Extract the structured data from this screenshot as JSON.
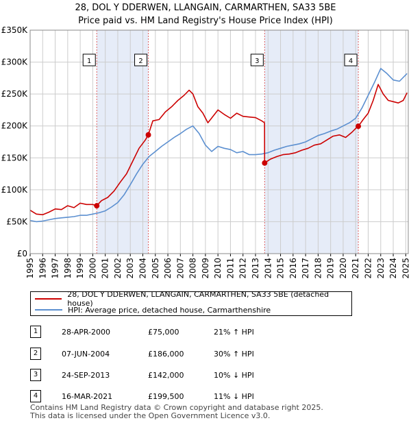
{
  "title_line1": "28, DOL Y DDERWEN, LLANGAIN, CARMARTHEN, SA33 5BE",
  "title_line2": "Price paid vs. HM Land Registry's House Price Index (HPI)",
  "chart_data": {
    "type": "line",
    "ylim": [
      0,
      350000
    ],
    "xlim": [
      1995.0,
      2025.2
    ],
    "y_ticks": [
      {
        "value": 0,
        "label": "£0"
      },
      {
        "value": 50000,
        "label": "£50K"
      },
      {
        "value": 100000,
        "label": "£100K"
      },
      {
        "value": 150000,
        "label": "£150K"
      },
      {
        "value": 200000,
        "label": "£200K"
      },
      {
        "value": 250000,
        "label": "£250K"
      },
      {
        "value": 300000,
        "label": "£300K"
      },
      {
        "value": 350000,
        "label": "£350K"
      }
    ],
    "x_ticks": [
      "1995",
      "1996",
      "1997",
      "1998",
      "1999",
      "2000",
      "2001",
      "2002",
      "2003",
      "2004",
      "2005",
      "2006",
      "2007",
      "2008",
      "2009",
      "2010",
      "2011",
      "2012",
      "2013",
      "2014",
      "2015",
      "2016",
      "2017",
      "2018",
      "2019",
      "2020",
      "2021",
      "2022",
      "2023",
      "2024",
      "2025"
    ],
    "shaded_periods": [
      [
        2000.32,
        2004.44
      ],
      [
        2013.73,
        2021.21
      ]
    ],
    "series": [
      {
        "name": "28, DOL Y DDERWEN, LLANGAIN, CARMARTHEN, SA33 5BE (detached house)",
        "color": "#cc0000",
        "x": [
          1995.0,
          1995.5,
          1996.0,
          1996.5,
          1997.0,
          1997.5,
          1998.0,
          1998.5,
          1999.0,
          1999.5,
          2000.0,
          2000.32,
          2000.7,
          2001.2,
          2001.7,
          2002.2,
          2002.7,
          2003.2,
          2003.7,
          2004.2,
          2004.44,
          2004.8,
          2005.3,
          2005.8,
          2006.3,
          2006.8,
          2007.3,
          2007.7,
          2008.0,
          2008.4,
          2008.8,
          2009.2,
          2009.6,
          2010.0,
          2010.5,
          2011.0,
          2011.5,
          2012.0,
          2012.5,
          2013.0,
          2013.5,
          2013.72,
          2013.73,
          2014.2,
          2014.7,
          2015.2,
          2015.7,
          2016.2,
          2016.7,
          2017.2,
          2017.7,
          2018.2,
          2018.7,
          2019.2,
          2019.7,
          2020.2,
          2020.7,
          2021.0,
          2021.21,
          2021.6,
          2022.0,
          2022.4,
          2022.8,
          2023.2,
          2023.6,
          2024.0,
          2024.4,
          2024.8,
          2025.1
        ],
        "y": [
          68000,
          62000,
          61000,
          65000,
          70000,
          69000,
          75000,
          72000,
          79000,
          77000,
          77000,
          75000,
          83000,
          88000,
          98000,
          112000,
          125000,
          145000,
          165000,
          178000,
          186000,
          208000,
          210000,
          222000,
          230000,
          240000,
          248000,
          256000,
          250000,
          230000,
          220000,
          205000,
          215000,
          225000,
          218000,
          212000,
          220000,
          215000,
          214000,
          213000,
          208000,
          205000,
          142000,
          148000,
          152000,
          155000,
          156000,
          158000,
          162000,
          165000,
          170000,
          172000,
          178000,
          184000,
          186000,
          182000,
          190000,
          196000,
          199500,
          210000,
          220000,
          240000,
          265000,
          250000,
          240000,
          238000,
          236000,
          240000,
          252000
        ]
      },
      {
        "name": "HPI: Average price, detached house, Carmarthenshire",
        "color": "#5b8fd0",
        "x": [
          1995.0,
          1995.5,
          1996.0,
          1996.5,
          1997.0,
          1997.5,
          1998.0,
          1998.5,
          1999.0,
          1999.5,
          2000.0,
          2000.5,
          2001.0,
          2001.5,
          2002.0,
          2002.5,
          2003.0,
          2003.5,
          2004.0,
          2004.5,
          2005.0,
          2005.5,
          2006.0,
          2006.5,
          2007.0,
          2007.5,
          2008.0,
          2008.5,
          2009.0,
          2009.5,
          2010.0,
          2010.5,
          2011.0,
          2011.5,
          2012.0,
          2012.5,
          2013.0,
          2013.5,
          2014.0,
          2014.5,
          2015.0,
          2015.5,
          2016.0,
          2016.5,
          2017.0,
          2017.5,
          2018.0,
          2018.5,
          2019.0,
          2019.5,
          2020.0,
          2020.5,
          2021.0,
          2021.5,
          2022.0,
          2022.5,
          2023.0,
          2023.5,
          2024.0,
          2024.5,
          2025.1
        ],
        "y": [
          52000,
          50000,
          51000,
          53000,
          55000,
          56000,
          57000,
          58000,
          60000,
          60000,
          62000,
          64000,
          67000,
          73000,
          80000,
          92000,
          108000,
          125000,
          140000,
          152000,
          160000,
          168000,
          175000,
          182000,
          188000,
          195000,
          200000,
          188000,
          170000,
          160000,
          168000,
          165000,
          163000,
          158000,
          160000,
          155000,
          155000,
          156000,
          158000,
          162000,
          165000,
          168000,
          170000,
          172000,
          175000,
          180000,
          185000,
          188000,
          192000,
          195000,
          200000,
          205000,
          212000,
          228000,
          248000,
          268000,
          290000,
          282000,
          272000,
          270000,
          282000
        ]
      }
    ],
    "sales": [
      {
        "n": "1",
        "x": 2000.32,
        "y": 75000
      },
      {
        "n": "2",
        "x": 2004.44,
        "y": 186000
      },
      {
        "n": "3",
        "x": 2013.73,
        "y": 142000
      },
      {
        "n": "4",
        "x": 2021.21,
        "y": 199500
      }
    ]
  },
  "legend": {
    "property_label": "28, DOL Y DDERWEN, LLANGAIN, CARMARTHEN, SA33 5BE (detached house)",
    "hpi_label": "HPI: Average price, detached house, Carmarthenshire",
    "property_color": "#cc0000",
    "hpi_color": "#5b8fd0"
  },
  "sales_table": [
    {
      "n": "1",
      "date": "28-APR-2000",
      "price": "£75,000",
      "hpi": "21% ↑ HPI"
    },
    {
      "n": "2",
      "date": "07-JUN-2004",
      "price": "£186,000",
      "hpi": "30% ↑ HPI"
    },
    {
      "n": "3",
      "date": "24-SEP-2013",
      "price": "£142,000",
      "hpi": "10% ↓ HPI"
    },
    {
      "n": "4",
      "date": "16-MAR-2021",
      "price": "£199,500",
      "hpi": "11% ↓ HPI"
    }
  ],
  "footer_line1": "Contains HM Land Registry data © Crown copyright and database right 2025.",
  "footer_line2": "This data is licensed under the Open Government Licence v3.0."
}
